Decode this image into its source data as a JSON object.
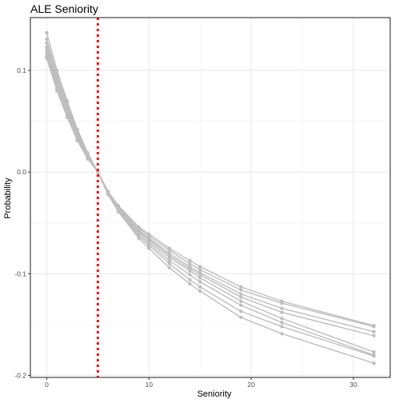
{
  "chart_data": {
    "type": "line",
    "title": "ALE Seniority",
    "xlabel": "Seniority",
    "ylabel": "Probability",
    "xlim": [
      -1.6,
      33.6
    ],
    "ylim": [
      -0.202,
      0.152
    ],
    "x_ticks": [
      0,
      10,
      20,
      30
    ],
    "y_ticks": [
      0.1,
      0.0,
      -0.1,
      -0.2
    ],
    "x_tick_labels": [
      "0",
      "10",
      "20",
      "30"
    ],
    "y_tick_labels": [
      "0.1",
      "0.0",
      "-0.1",
      "-0.2"
    ],
    "grid": true,
    "legend": "none",
    "reference_line": {
      "x": 5,
      "style": "dotted",
      "color": "#ff0000"
    },
    "series_color": "#bebebe",
    "x": [
      0,
      1,
      2,
      3,
      4,
      5,
      6,
      7,
      9,
      10,
      12,
      14,
      15,
      19,
      23,
      32
    ],
    "series": [
      {
        "values": [
          0.137,
          0.1,
          0.07,
          0.042,
          0.019,
          0.0,
          -0.019,
          -0.033,
          -0.054,
          -0.061,
          -0.075,
          -0.087,
          -0.093,
          -0.113,
          -0.127,
          -0.151
        ]
      },
      {
        "values": [
          0.131,
          0.096,
          0.067,
          0.04,
          0.018,
          0.0,
          -0.019,
          -0.034,
          -0.055,
          -0.063,
          -0.077,
          -0.09,
          -0.096,
          -0.116,
          -0.129,
          -0.152
        ]
      },
      {
        "values": [
          0.127,
          0.093,
          0.065,
          0.039,
          0.017,
          0.0,
          -0.02,
          -0.035,
          -0.057,
          -0.065,
          -0.08,
          -0.093,
          -0.099,
          -0.12,
          -0.134,
          -0.157
        ]
      },
      {
        "values": [
          0.123,
          0.09,
          0.063,
          0.037,
          0.017,
          0.0,
          -0.02,
          -0.035,
          -0.058,
          -0.066,
          -0.082,
          -0.095,
          -0.101,
          -0.123,
          -0.138,
          -0.161
        ]
      },
      {
        "values": [
          0.12,
          0.088,
          0.061,
          0.036,
          0.016,
          0.0,
          -0.021,
          -0.036,
          -0.059,
          -0.068,
          -0.084,
          -0.097,
          -0.104,
          -0.127,
          -0.144,
          -0.177
        ]
      },
      {
        "values": [
          0.117,
          0.085,
          0.058,
          0.034,
          0.015,
          0.0,
          -0.021,
          -0.037,
          -0.061,
          -0.07,
          -0.087,
          -0.101,
          -0.108,
          -0.131,
          -0.148,
          -0.18
        ]
      },
      {
        "values": [
          0.114,
          0.082,
          0.056,
          0.032,
          0.014,
          0.0,
          -0.022,
          -0.038,
          -0.063,
          -0.072,
          -0.09,
          -0.106,
          -0.113,
          -0.137,
          -0.152,
          -0.181
        ]
      },
      {
        "values": [
          0.112,
          0.08,
          0.054,
          0.031,
          0.013,
          0.0,
          -0.022,
          -0.039,
          -0.065,
          -0.075,
          -0.094,
          -0.11,
          -0.117,
          -0.143,
          -0.159,
          -0.188
        ]
      }
    ]
  }
}
